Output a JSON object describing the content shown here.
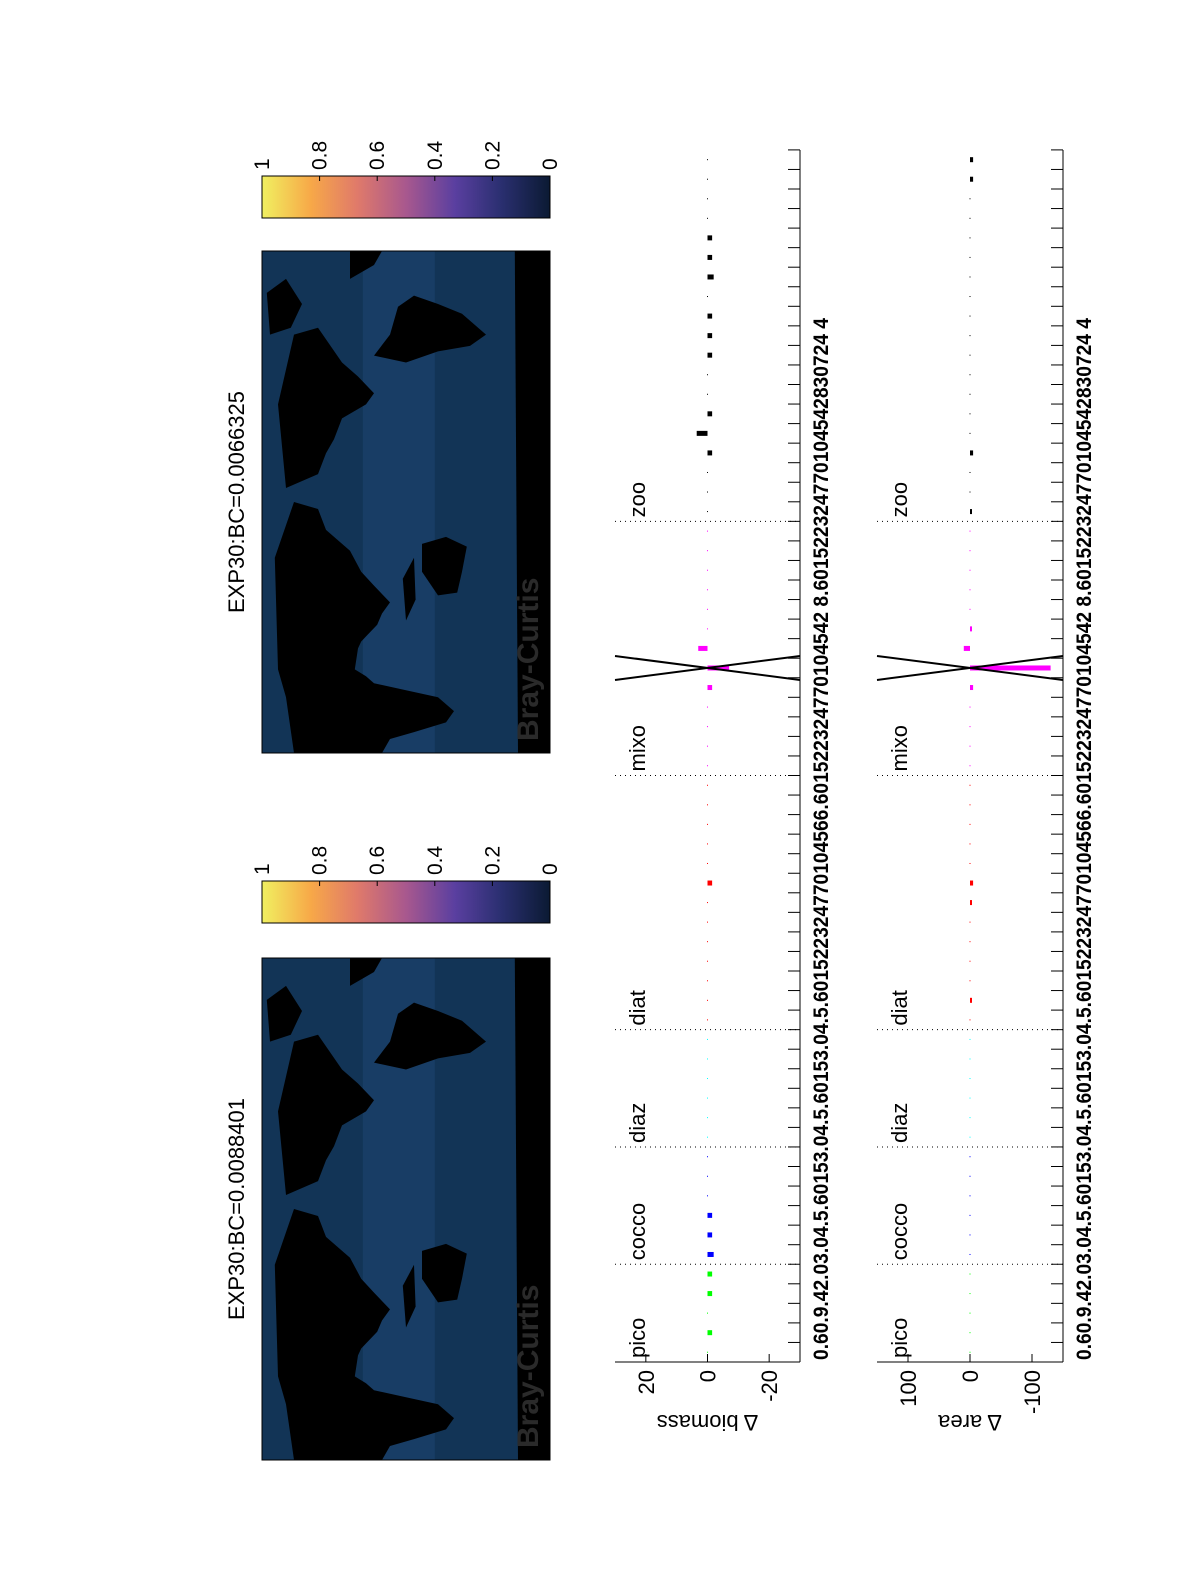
{
  "maps": [
    {
      "title": "EXP30:BC=0.0088401",
      "label": "Bray-Curtis"
    },
    {
      "title": "EXP30:BC=0.0066325",
      "label": "Bray-Curtis"
    }
  ],
  "colorbar": {
    "ticks": [
      "0",
      "0.2",
      "0.4",
      "0.6",
      "0.8",
      "1"
    ],
    "range": [
      0,
      1
    ],
    "colormap": [
      "#0b1a33",
      "#2a2f70",
      "#5a3fa0",
      "#a8588e",
      "#e07a6a",
      "#f7a848",
      "#f0f060"
    ]
  },
  "chart_data": [
    {
      "type": "bar",
      "ylabel": "Δ biomass",
      "ylim": [
        -30,
        30
      ],
      "yticks": [
        "20",
        "0",
        "-20"
      ],
      "ytick_values": [
        20,
        0,
        -20
      ],
      "xtick_text": "0.60.9.42.03.04.5.60153.04.5.60153.04.5.601522324770104566.601522324770104542 8.601522324770104542830724 4",
      "groups": [
        {
          "name": "pico",
          "color": "#00ff00",
          "values": [
            0,
            -1.5,
            0,
            -1.5,
            -1.5
          ]
        },
        {
          "name": "cocco",
          "color": "#0000ff",
          "values": [
            -2,
            -1.5,
            -1.5,
            0,
            0,
            0
          ]
        },
        {
          "name": "diaz",
          "color": "#00ffff",
          "values": [
            0,
            0,
            0,
            0,
            0,
            0
          ]
        },
        {
          "name": "diat",
          "color": "#ff0000",
          "values": [
            0,
            0,
            0,
            0,
            0,
            0,
            0,
            -1.5,
            0,
            0,
            0,
            0,
            0
          ]
        },
        {
          "name": "mixo",
          "color": "#ff00ff",
          "values": [
            0,
            0,
            0,
            0,
            -1.5,
            -7,
            3,
            0,
            0,
            0,
            0,
            0,
            0
          ]
        },
        {
          "name": "zoo",
          "color": "#000000",
          "values": [
            0,
            0,
            0,
            -1.5,
            3.5,
            -1.5,
            0,
            0,
            -1.5,
            -1.5,
            -1.5,
            0,
            -2,
            -1.5,
            -1.5,
            0,
            0,
            0,
            0
          ]
        }
      ],
      "x_marker": {
        "group": "mixo",
        "index": 5
      }
    },
    {
      "type": "bar",
      "ylabel": "Δ area",
      "ylim": [
        -150,
        150
      ],
      "yticks": [
        "100",
        "0",
        "-100"
      ],
      "ytick_values": [
        100,
        0,
        -100
      ],
      "xtick_text": "0.60.9.42.03.04.5.60153.04.5.60153.04.5.601522324770104566.601522324770104542 8.601522324770104542830724 4",
      "groups": [
        {
          "name": "pico",
          "color": "#00ff00",
          "values": [
            0,
            0,
            0,
            0,
            0
          ]
        },
        {
          "name": "cocco",
          "color": "#0000ff",
          "values": [
            0,
            0,
            0,
            0,
            0,
            0
          ]
        },
        {
          "name": "diaz",
          "color": "#00ffff",
          "values": [
            0,
            0,
            0,
            0,
            0,
            0
          ]
        },
        {
          "name": "diat",
          "color": "#ff0000",
          "values": [
            0,
            -3,
            0,
            0,
            0,
            0,
            -3,
            -5,
            0,
            0,
            0,
            0,
            0
          ]
        },
        {
          "name": "mixo",
          "color": "#ff00ff",
          "values": [
            0,
            0,
            0,
            0,
            -5,
            -130,
            10,
            -3,
            0,
            0,
            0,
            0,
            0
          ]
        },
        {
          "name": "zoo",
          "color": "#000000",
          "values": [
            -3,
            0,
            0,
            -5,
            0,
            0,
            0,
            0,
            0,
            0,
            0,
            0,
            0,
            0,
            0,
            0,
            0,
            -5,
            -5
          ]
        }
      ],
      "x_marker": {
        "group": "mixo",
        "index": 5
      }
    }
  ]
}
